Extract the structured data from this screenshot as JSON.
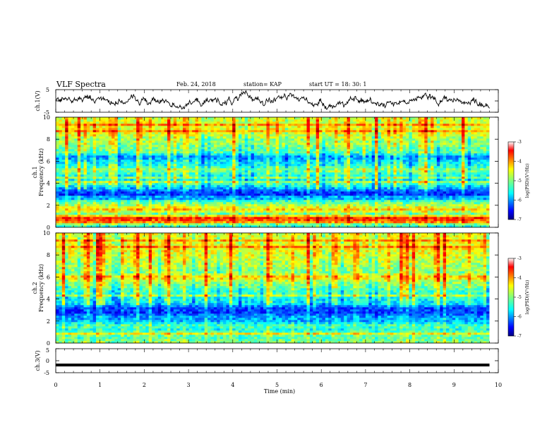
{
  "header": {
    "title": "VLF Spectra",
    "date": "Feb. 24, 2018",
    "station": "station= KAP",
    "start": "start UT =  18: 30: 1"
  },
  "chart_data": [
    {
      "type": "line",
      "panel": "ch1-waveform",
      "ylabel": "ch.1(V)",
      "ylim": [
        -5,
        5
      ],
      "y_ticks": [
        "5",
        "-5"
      ],
      "xlim": [
        0,
        10
      ],
      "trace_end_min": 9.8,
      "description_values": {
        "approx_min": -4.5,
        "approx_max": 4.5
      }
    },
    {
      "type": "heatmap",
      "panel": "ch1-spectrogram",
      "ylabel": "ch.1\nFrequency (kHz)",
      "ylim": [
        0,
        10
      ],
      "y_ticks": [
        "0",
        "2",
        "4",
        "6",
        "8",
        "10"
      ],
      "xlim": [
        0,
        10
      ],
      "data_end_min": 9.8,
      "colorbar": {
        "label": "log(PSD)(V²/Hz)",
        "range": [
          -7,
          -3
        ],
        "ticks": [
          "-3",
          "-4",
          "-5",
          "-6",
          "-7"
        ]
      },
      "profile_logpsd_by_freq_khz": [
        [
          0.2,
          -5.4
        ],
        [
          0.5,
          -4.0
        ],
        [
          0.9,
          -3.6
        ],
        [
          1.2,
          -5.2
        ],
        [
          1.6,
          -4.3
        ],
        [
          2.0,
          -4.8
        ],
        [
          2.4,
          -5.3
        ],
        [
          2.8,
          -6.4
        ],
        [
          3.2,
          -6.3
        ],
        [
          3.6,
          -5.8
        ],
        [
          4.0,
          -5.2
        ],
        [
          4.4,
          -5.6
        ],
        [
          4.8,
          -5.4
        ],
        [
          5.2,
          -4.9
        ],
        [
          5.6,
          -5.4
        ],
        [
          6.0,
          -5.6
        ],
        [
          6.4,
          -6.0
        ],
        [
          6.8,
          -5.2
        ],
        [
          7.2,
          -5.1
        ],
        [
          7.6,
          -4.9
        ],
        [
          8.0,
          -4.9
        ],
        [
          8.5,
          -4.6
        ],
        [
          9.0,
          -4.5
        ],
        [
          9.5,
          -4.6
        ],
        [
          10.0,
          -4.7
        ]
      ]
    },
    {
      "type": "heatmap",
      "panel": "ch2-spectrogram",
      "ylabel": "ch.2\nFrequency (kHz)",
      "ylim": [
        0,
        10
      ],
      "y_ticks": [
        "0",
        "2",
        "4",
        "6",
        "8",
        "10"
      ],
      "xlim": [
        0,
        10
      ],
      "data_end_min": 9.8,
      "colorbar": {
        "label": "log(PSD)(V²/Hz)",
        "range": [
          -7,
          -3
        ],
        "ticks": [
          "-3",
          "-4",
          "-5",
          "-6",
          "-7"
        ]
      },
      "profile_logpsd_by_freq_khz": [
        [
          0.2,
          -5.0
        ],
        [
          0.5,
          -5.2
        ],
        [
          0.9,
          -5.0
        ],
        [
          1.2,
          -5.4
        ],
        [
          1.6,
          -5.2
        ],
        [
          2.0,
          -5.8
        ],
        [
          2.4,
          -5.9
        ],
        [
          2.8,
          -6.3
        ],
        [
          3.2,
          -6.2
        ],
        [
          3.6,
          -5.6
        ],
        [
          4.0,
          -5.5
        ],
        [
          4.4,
          -5.3
        ],
        [
          4.8,
          -5.3
        ],
        [
          5.2,
          -5.0
        ],
        [
          5.6,
          -4.9
        ],
        [
          6.0,
          -4.2
        ],
        [
          6.4,
          -5.0
        ],
        [
          6.8,
          -4.9
        ],
        [
          7.2,
          -4.8
        ],
        [
          7.6,
          -4.7
        ],
        [
          8.0,
          -4.6
        ],
        [
          8.5,
          -4.5
        ],
        [
          9.0,
          -4.5
        ],
        [
          9.5,
          -4.6
        ],
        [
          10.0,
          -4.6
        ]
      ]
    },
    {
      "type": "line",
      "panel": "ch3-waveform",
      "ylabel": "ch.3(V)",
      "ylim": [
        -5,
        5
      ],
      "y_ticks": [
        "5",
        "0",
        "-5"
      ],
      "xlim": [
        0,
        10
      ],
      "trace_end_min": 9.8,
      "description_values": {
        "approx_level": -1.8
      }
    }
  ],
  "x_axis": {
    "label": "Time (min)",
    "ticks": [
      "0",
      "1",
      "2",
      "3",
      "4",
      "5",
      "6",
      "7",
      "8",
      "9",
      "10"
    ]
  }
}
